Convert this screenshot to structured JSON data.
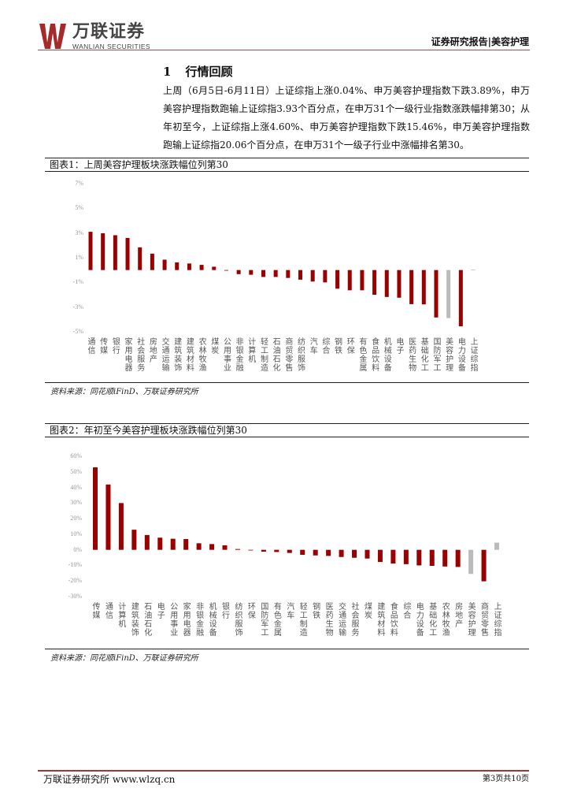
{
  "header": {
    "logo_cn": "万联证券",
    "logo_en": "WANLIAN SECURITIES",
    "report_type": "证券研究报告|美容护理"
  },
  "section": {
    "number": "1",
    "title": "行情回顾"
  },
  "paragraph": "上周（6月5日-6月11日）上证综指上涨0.04%、申万美容护理指数下跌3.89%，申万美容护理指数跑输上证综指3.93个百分点，在申万31个一级行业指数涨跌幅排第30；从年初至今，上证综指上涨4.60%、申万美容护理指数下跌15.46%，申万美容护理指数跑输上证综指20.06个百分点，在申万31个一级子行业中涨幅排名第30。",
  "colors": {
    "bar": "#990000",
    "highlight": "#bbbbbb",
    "accent": "#aa3333"
  },
  "chart_data": [
    {
      "type": "bar",
      "title": "图表1：上周美容护理板块涨跌幅位列第30",
      "ylabel": "",
      "xlabel": "",
      "ylim": [
        -5,
        7
      ],
      "yticks": [
        "7%",
        "5%",
        "3%",
        "1%",
        "-1%",
        "-3%",
        "-5%"
      ],
      "ytick_values": [
        7,
        5,
        3,
        1,
        -1,
        -3,
        -5
      ],
      "categories": [
        "通信",
        "传媒",
        "银行",
        "家用电器",
        "社会服务",
        "房地产",
        "交通运输",
        "建筑装饰",
        "建筑材料",
        "农林牧渔",
        "煤炭",
        "公用事业",
        "非银金融",
        "计算机",
        "轻工制造",
        "石油石化",
        "商贸零售",
        "纺织服饰",
        "汽车",
        "综合",
        "钢铁",
        "环保",
        "有色金属",
        "食品饮料",
        "机械设备",
        "电子",
        "医药生物",
        "基础化工",
        "国防军工",
        "美容护理",
        "电力设备",
        "上证综指"
      ],
      "values": [
        3.1,
        2.98,
        2.82,
        2.6,
        1.84,
        1.33,
        0.84,
        0.62,
        0.53,
        0.42,
        0.27,
        -0.04,
        -0.33,
        -0.38,
        -0.56,
        -0.56,
        -0.64,
        -0.78,
        -0.93,
        -1.0,
        -1.51,
        -1.64,
        -1.64,
        -2.0,
        -2.18,
        -2.24,
        -2.76,
        -2.78,
        -3.84,
        -3.89,
        -4.56,
        0.04
      ],
      "highlight": [
        "美容护理",
        "上证综指"
      ],
      "source": "资料来源：同花顺iFinD、万联证券研究所"
    },
    {
      "type": "bar",
      "title": "图表2：年初至今美容护理板块涨跌幅位列第30",
      "ylabel": "",
      "xlabel": "",
      "ylim": [
        -30,
        60
      ],
      "yticks": [
        "60%",
        "50%",
        "40%",
        "30%",
        "20%",
        "10%",
        "0%",
        "-10%",
        "-20%",
        "-30%"
      ],
      "ytick_values": [
        60,
        50,
        40,
        30,
        20,
        10,
        0,
        -10,
        -20,
        -30
      ],
      "categories": [
        "传媒",
        "通信",
        "计算机",
        "建筑装饰",
        "石油石化",
        "电子",
        "公用事业",
        "家用电器",
        "非银金融",
        "机械设备",
        "银行",
        "纺织服饰",
        "环保",
        "国防军工",
        "有色金属",
        "汽车",
        "轻工制造",
        "钢铁",
        "医药生物",
        "交通运输",
        "社会服务",
        "煤炭",
        "建筑材料",
        "食品饮料",
        "综合",
        "电力设备",
        "基础化工",
        "农林牧渔",
        "房地产",
        "美容护理",
        "商贸零售",
        "上证综指"
      ],
      "values": [
        52.9,
        41.9,
        30.0,
        12.9,
        9.5,
        7.8,
        7.1,
        6.9,
        4.2,
        3.7,
        2.9,
        0.5,
        -0.2,
        -1.2,
        -1.4,
        -2.0,
        -3.2,
        -3.6,
        -3.9,
        -4.6,
        -5.1,
        -5.6,
        -7.8,
        -8.8,
        -9.2,
        -10.0,
        -10.3,
        -10.7,
        -11.0,
        -15.46,
        -20.2,
        4.6
      ],
      "highlight": [
        "美容护理",
        "上证综指"
      ],
      "source": "资料来源：同花顺iFinD、万联证券研究所"
    }
  ],
  "footer": {
    "left": "万联证券研究所 www.wlzq.cn",
    "right": "第3页共10页"
  }
}
